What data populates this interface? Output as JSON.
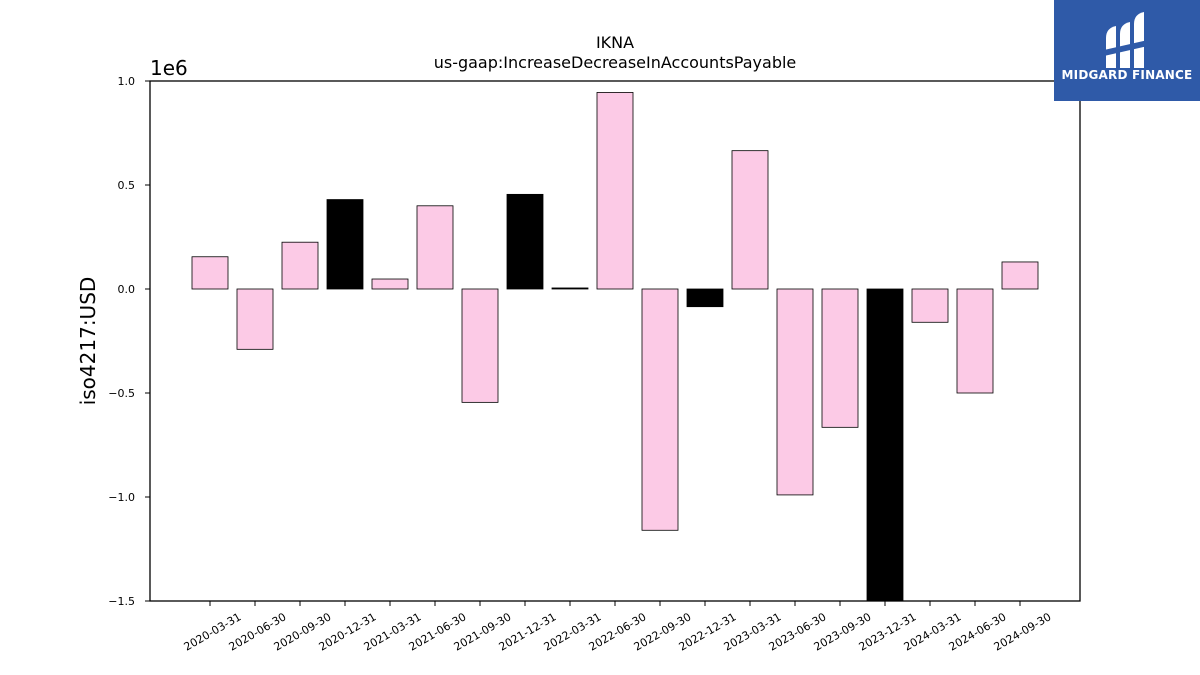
{
  "chart_data": {
    "type": "bar",
    "title": "IKNA",
    "subtitle": "us-gaap:IncreaseDecreaseInAccountsPayable",
    "ylabel": "iso4217:USD",
    "xlabel": "",
    "offset_text": "1e6",
    "ylim": [
      -1.5,
      1.0
    ],
    "yticks": [
      -1.5,
      -1.0,
      -0.5,
      0.0,
      0.5,
      1.0
    ],
    "ytick_labels": [
      "−1.5",
      "−1.0",
      "−0.5",
      "0.0",
      "0.5",
      "1.0"
    ],
    "grid": false,
    "categories": [
      "2020-03-31",
      "2020-06-30",
      "2020-09-30",
      "2020-12-31",
      "2021-03-31",
      "2021-06-30",
      "2021-09-30",
      "2021-12-31",
      "2022-03-31",
      "2022-06-30",
      "2022-09-30",
      "2022-12-31",
      "2023-03-31",
      "2023-06-30",
      "2023-09-30",
      "2023-12-31",
      "2024-03-31",
      "2024-06-30",
      "2024-09-30"
    ],
    "values": [
      0.155,
      -0.29,
      0.225,
      0.43,
      0.048,
      0.4,
      -0.545,
      0.455,
      0.005,
      0.945,
      -1.16,
      -0.085,
      0.665,
      -0.99,
      -0.665,
      -1.52,
      -0.16,
      -0.5,
      0.13
    ],
    "bar_colors": [
      "#fccae6",
      "#fccae6",
      "#fccae6",
      "#000000",
      "#fccae6",
      "#fccae6",
      "#fccae6",
      "#000000",
      "#000000",
      "#fccae6",
      "#fccae6",
      "#000000",
      "#fccae6",
      "#fccae6",
      "#fccae6",
      "#000000",
      "#fccae6",
      "#fccae6",
      "#fccae6"
    ],
    "edge_color": "#000000"
  },
  "logo": {
    "text": "MIDGARD FINANCE",
    "background": "#2f5aa8",
    "icon": "midgard-logo-mark"
  }
}
